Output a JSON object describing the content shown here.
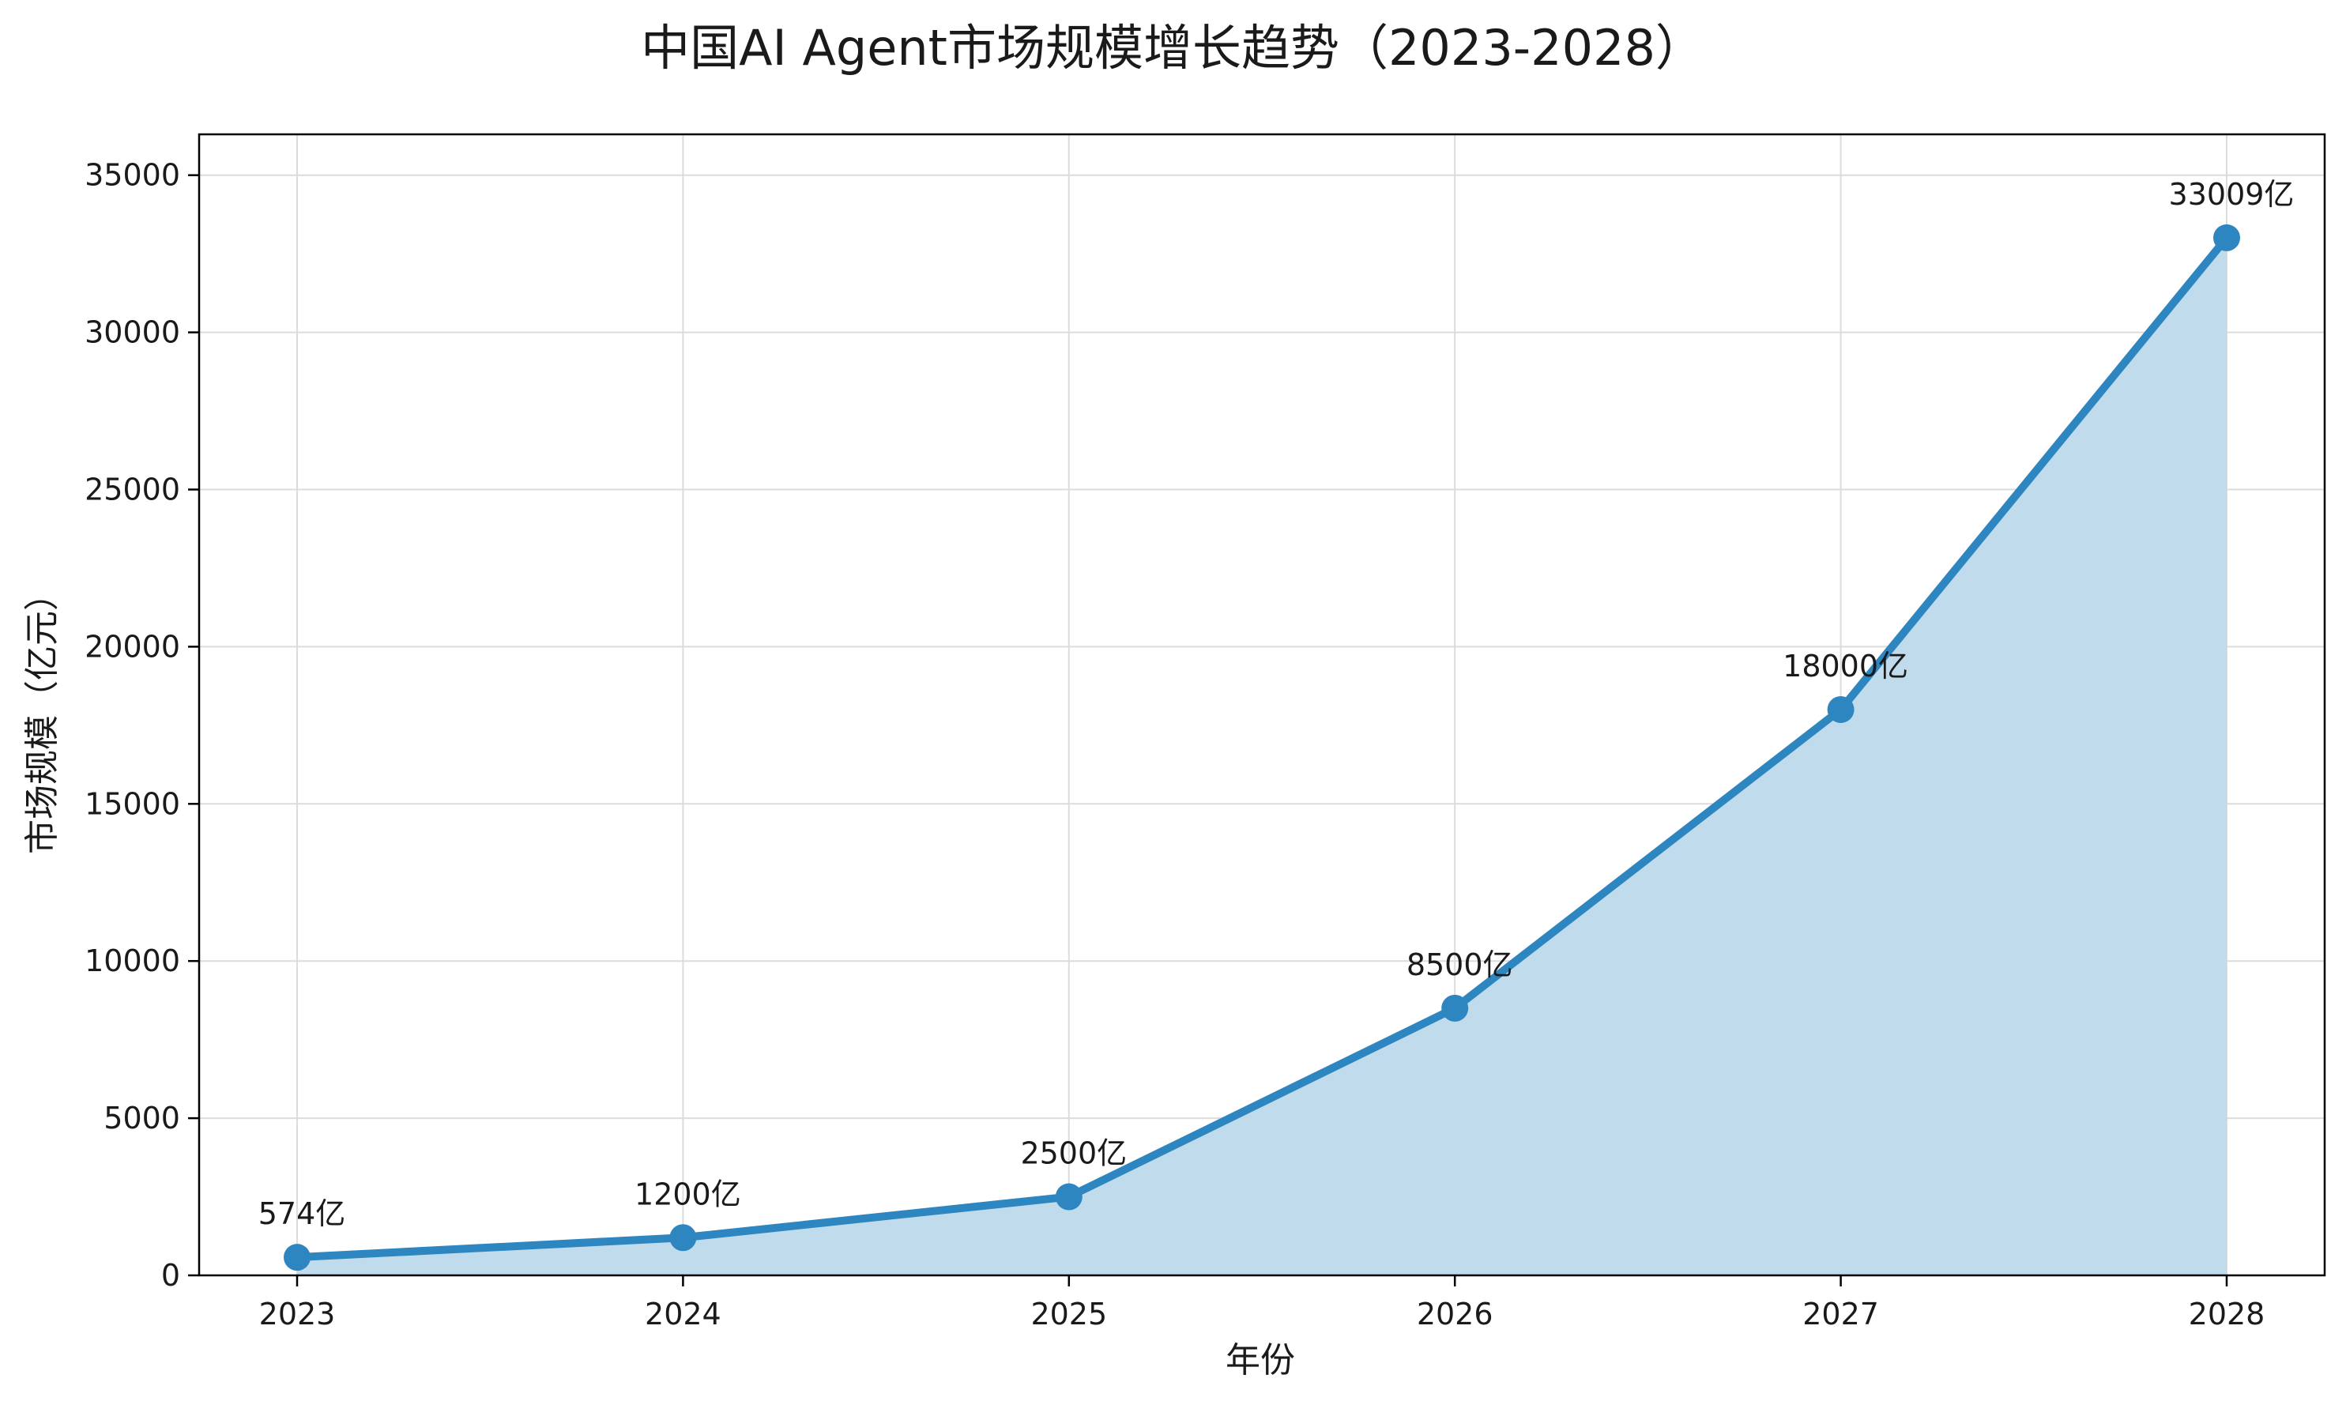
{
  "chart_data": {
    "type": "area",
    "title": "中国AI Agent市场规模增长趋势（2023-2028）",
    "xlabel": "年份",
    "ylabel": "市场规模（亿元）",
    "categories": [
      "2023",
      "2024",
      "2025",
      "2026",
      "2027",
      "2028"
    ],
    "series": [
      {
        "values": [
          574,
          1200,
          2500,
          8500,
          18000,
          33009
        ],
        "line_color": "#2e86c1",
        "fill_color": "#bfdaec"
      }
    ],
    "data_labels": [
      "574亿",
      "1200亿",
      "2500亿",
      "8500亿",
      "18000亿",
      "33009亿"
    ],
    "y_ticks": [
      0,
      5000,
      10000,
      15000,
      20000,
      25000,
      30000,
      35000
    ],
    "ylim": [
      0,
      36300
    ],
    "grid": true,
    "legend": "none"
  }
}
